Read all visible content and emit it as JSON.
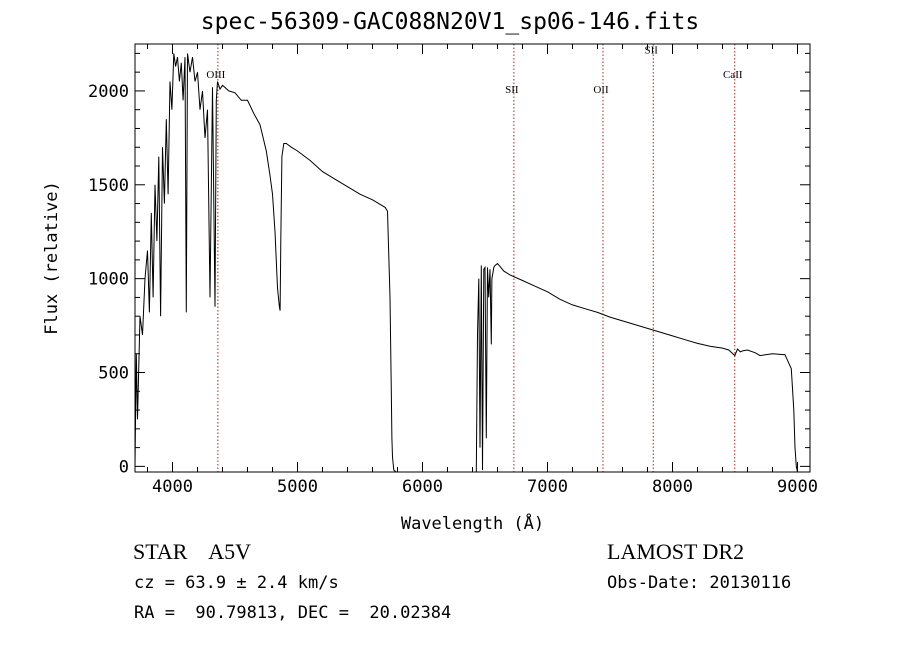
{
  "chart_data": {
    "type": "line",
    "title": "spec-56309-GAC088N20V1_sp06-146.fits",
    "xlabel": "Wavelength (Å)",
    "ylabel": "Flux (relative)",
    "xlim": [
      3700,
      9100
    ],
    "ylim": [
      -30,
      2250
    ],
    "xticks": [
      4000,
      5000,
      6000,
      7000,
      8000,
      9000
    ],
    "yticks": [
      0,
      500,
      1000,
      1500,
      2000
    ],
    "grid": false,
    "series": [
      {
        "x": [
          3700,
          3710,
          3720,
          3740,
          3760,
          3780,
          3800,
          3815,
          3830,
          3845,
          3860,
          3875,
          3890,
          3905,
          3920,
          3935,
          3950,
          3965,
          3980,
          3995,
          4010,
          4025,
          4040,
          4055,
          4070,
          4085,
          4100,
          4110,
          4120,
          4140,
          4160,
          4180,
          4200,
          4220,
          4240,
          4260,
          4280,
          4300,
          4320,
          4340,
          4350,
          4360,
          4380,
          4400,
          4450,
          4500,
          4550,
          4600,
          4650,
          4700,
          4750,
          4780,
          4800,
          4820,
          4840,
          4855,
          4861,
          4866,
          4875,
          4890,
          4910,
          4950,
          5000,
          5100,
          5200,
          5300,
          5400,
          5500,
          5600,
          5650,
          5700,
          5720,
          5740,
          5750,
          5755,
          5760,
          5770,
          5790,
          6430,
          6440,
          6450,
          6460,
          6470,
          6480,
          6490,
          6500,
          6510,
          6520,
          6530,
          6540,
          6550,
          6555,
          6563,
          6570,
          6580,
          6600,
          6620,
          6650,
          6700,
          6800,
          6900,
          7000,
          7100,
          7200,
          7300,
          7400,
          7500,
          7600,
          7700,
          7800,
          7900,
          8000,
          8100,
          8200,
          8300,
          8400,
          8450,
          8498,
          8520,
          8542,
          8560,
          8600,
          8662,
          8700,
          8800,
          8900,
          8950,
          8970,
          8980,
          8990,
          9000
        ],
        "y": [
          0,
          600,
          250,
          800,
          700,
          1000,
          1150,
          820,
          1350,
          900,
          1500,
          1200,
          1650,
          800,
          1700,
          1400,
          1850,
          1450,
          2050,
          1900,
          2200,
          2130,
          2180,
          2050,
          2150,
          1950,
          2180,
          820,
          2200,
          2100,
          2180,
          2050,
          2100,
          1900,
          2000,
          1750,
          1900,
          900,
          2020,
          850,
          1950,
          2050,
          2010,
          2030,
          2000,
          1990,
          1950,
          1950,
          1880,
          1820,
          1680,
          1550,
          1450,
          1250,
          950,
          850,
          830,
          1200,
          1650,
          1720,
          1720,
          1700,
          1680,
          1630,
          1570,
          1530,
          1490,
          1450,
          1420,
          1400,
          1380,
          1360,
          900,
          400,
          150,
          50,
          -20,
          -30,
          -30,
          700,
          1000,
          100,
          1070,
          -20,
          1050,
          1060,
          150,
          1060,
          900,
          1050,
          650,
          1000,
          1030,
          1060,
          1070,
          1080,
          1065,
          1040,
          1020,
          990,
          960,
          930,
          890,
          860,
          840,
          820,
          795,
          775,
          755,
          735,
          715,
          695,
          675,
          655,
          640,
          630,
          620,
          590,
          625,
          610,
          615,
          620,
          605,
          590,
          600,
          595,
          520,
          300,
          100,
          0,
          -30
        ]
      }
    ],
    "vlines": [
      {
        "x": 4363,
        "label": "OIII",
        "label_y": 2070
      },
      {
        "x": 6731,
        "label": "SII",
        "label_y": 1990
      },
      {
        "x": 7444,
        "label": "OII",
        "label_y": 1990
      },
      {
        "x": 7846,
        "label": "SII",
        "label_y": 2200
      },
      {
        "x": 8498,
        "label": "CaII",
        "label_y": 2070
      }
    ]
  },
  "footer": {
    "class_line": "STAR    A5V",
    "redshift_line": "cz = 63.9 ± 2.4 km/s",
    "coords_line": "RA =  90.79813, DEC =  20.02384",
    "survey": "LAMOST DR2",
    "obs_date": "Obs-Date: 20130116"
  },
  "colors": {
    "spectrum": "#000000",
    "line_markers": "#b22222",
    "axes": "#000000"
  }
}
